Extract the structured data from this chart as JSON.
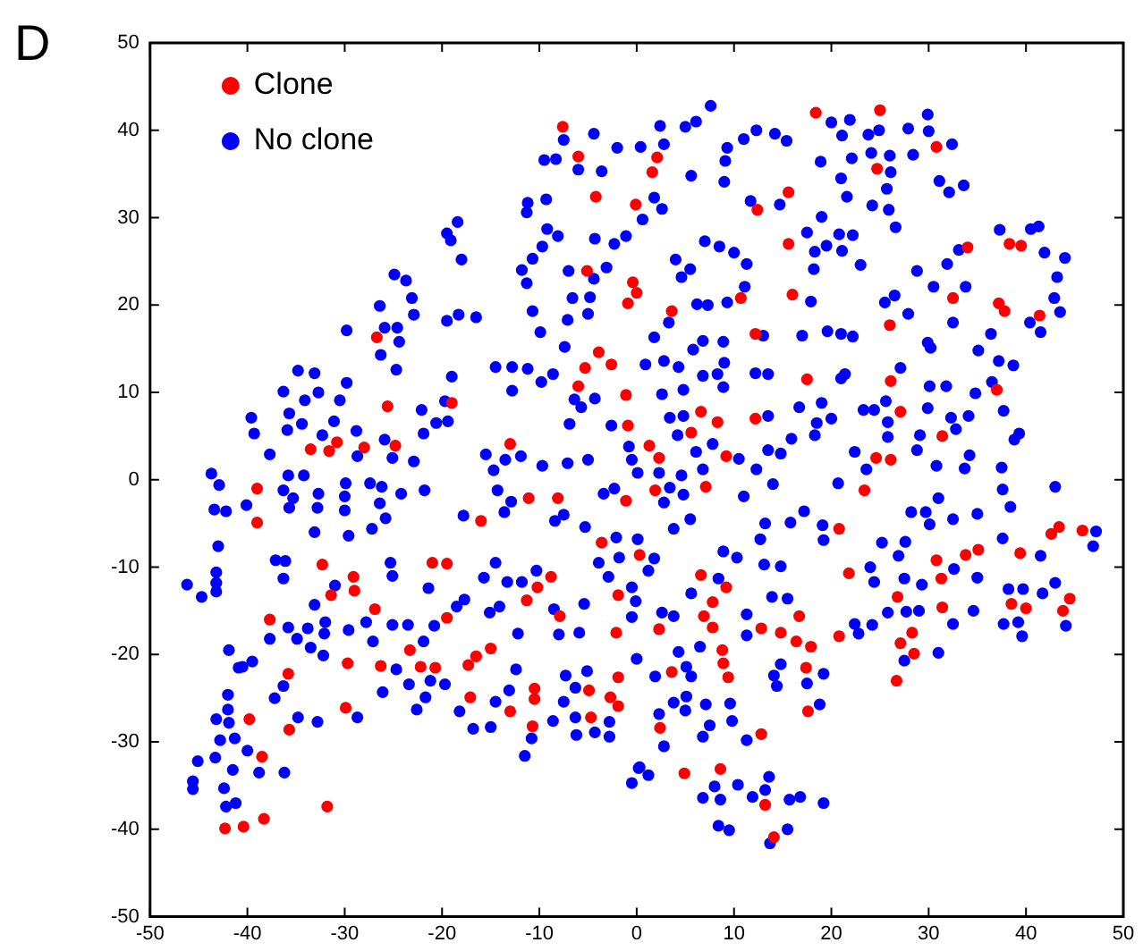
{
  "chart_data": {
    "type": "scatter",
    "annotations": [
      "D"
    ],
    "xlim": [
      -50,
      50
    ],
    "ylim": [
      -50,
      50
    ],
    "xticks": [
      -50,
      -40,
      -30,
      -20,
      -10,
      0,
      10,
      20,
      30,
      40,
      50
    ],
    "yticks": [
      -50,
      -40,
      -30,
      -20,
      -10,
      0,
      10,
      20,
      30,
      40,
      50
    ],
    "grid": false,
    "legend": "top left",
    "marker": "circle",
    "series": [
      {
        "name": "Clone",
        "color": "#ff0000",
        "x": [
          -7.6,
          -6,
          -4.2,
          -0.1,
          -5.1,
          -0.4,
          0,
          -0.9,
          -26.7,
          -3.9,
          -5.3,
          -2.6,
          -6,
          -1.1,
          -0.9,
          -25.6,
          -19,
          -13,
          -33.5,
          -31.6,
          -30.8,
          -28,
          -24.8,
          18.4,
          25,
          30.8,
          24.7,
          2.1,
          1.6,
          15.6,
          12.4,
          15.6,
          34,
          38.3,
          39.5,
          16,
          10.7,
          32.5,
          37.2,
          37.8,
          41.4,
          3.6,
          12.2,
          26,
          17.5,
          26.1,
          37,
          6.6,
          8.3,
          12.2,
          27.1,
          5.6,
          31.4,
          1.3,
          2.3,
          9.2,
          24.6,
          26.1,
          -39,
          -39,
          -32.3,
          -29.1,
          -29,
          -31.4,
          -26.9,
          -21,
          -19.5,
          -37.7,
          -19.5,
          -23.3,
          -29.7,
          -26.3,
          -22.2,
          -20.7,
          -35.8,
          -29.9,
          -35.7,
          -39.8,
          -38.5,
          -31.8,
          -42.3,
          -40.4,
          -38.3,
          -16,
          -11.1,
          -8.1,
          -1.1,
          -3.6,
          0.3,
          -8.8,
          -10.2,
          -11.3,
          -7.9,
          -1.9,
          -2.1,
          -1.9,
          -2.7,
          -1.9,
          -4.9,
          -4.7,
          -15,
          -16.5,
          -17.3,
          -17.1,
          -13,
          -10.5,
          -10.5,
          -10.7,
          1.9,
          7.1,
          23.4,
          20.8,
          6.6,
          9.2,
          7.8,
          6.9,
          7.8,
          2.3,
          8.8,
          8.9,
          9.4,
          3.6,
          12.8,
          14.8,
          16.7,
          16.4,
          17.9,
          17.4,
          17.6,
          20.8,
          21.8,
          2.4,
          12.8,
          4.9,
          8.6,
          13.2,
          14.1,
          26.8,
          28.3,
          27.1,
          28.5,
          26.7,
          30.8,
          31.3,
          31.4,
          33.8,
          35.1,
          39.4,
          38.5,
          40,
          44.5,
          43.8,
          42.6,
          43.4,
          45.8
        ],
        "values": [
          40.4,
          37,
          32.4,
          31.5,
          23.9,
          22.6,
          21.4,
          20.2,
          16.3,
          14.6,
          12.8,
          13.2,
          10.7,
          9.7,
          6.2,
          8.4,
          8.8,
          4.1,
          3.5,
          3.3,
          4.3,
          3.7,
          3.9,
          42,
          42.3,
          38.1,
          35.6,
          36.9,
          35.2,
          32.9,
          30.9,
          27,
          26.6,
          27,
          26.8,
          21.2,
          20.8,
          20.8,
          20.2,
          19.3,
          18.8,
          19.3,
          16.7,
          17.7,
          11.5,
          11.3,
          10.3,
          7.8,
          6.6,
          7,
          7.8,
          5.4,
          5,
          3.9,
          2.5,
          2.7,
          2.5,
          2.3,
          -1,
          -4.9,
          -9.7,
          -11.1,
          -12.7,
          -13.2,
          -14.8,
          -9.5,
          -9.6,
          -16,
          -15.8,
          -19.5,
          -21,
          -21.3,
          -21.4,
          -21.5,
          -22.2,
          -26.1,
          -28.6,
          -27.4,
          -31.7,
          -37.4,
          -39.9,
          -39.7,
          -38.8,
          -4.7,
          -2.1,
          -2.1,
          -2.4,
          -7.2,
          -8.6,
          -11.1,
          -12.3,
          -13.8,
          -15.6,
          -13.2,
          -17.5,
          -22.6,
          -24.9,
          -25.9,
          -24.1,
          -27.2,
          -19.3,
          -20.2,
          -21.2,
          -24.9,
          -26.5,
          -23.9,
          -25.1,
          -28.2,
          -1.2,
          -0.8,
          -1.2,
          -5.6,
          -10.9,
          -12.3,
          -14,
          -15.6,
          -16.9,
          -17.1,
          -19.5,
          -21,
          -22.6,
          -22,
          -17,
          -17.5,
          -15.6,
          -18.5,
          -19.1,
          -21.5,
          -26.5,
          -17.9,
          -10.7,
          -28.4,
          -29.1,
          -33.6,
          -33.1,
          -37.2,
          -40.9,
          -13.4,
          -17.5,
          -18.7,
          -19.9,
          -23,
          -9.2,
          -11.3,
          -14.6,
          -8.6,
          -8,
          -8.4,
          -14.2,
          -14.7,
          -13.6,
          -15,
          -6.2,
          -5.4,
          -5.8
        ]
      },
      {
        "name": "No clone",
        "color": "#0000ff",
        "x": [
          -7.5,
          -4.4,
          -9.5,
          -8.3,
          -6,
          -3.6,
          -2,
          -11.2,
          -11.3,
          -9.3,
          -9.2,
          -8.1,
          -4.3,
          -2.3,
          -1.1,
          -9.7,
          -10.7,
          -11.8,
          -11.3,
          -7,
          -4.4,
          -3.1,
          -6.6,
          -4.8,
          -5,
          -7.1,
          -10.7,
          -9.9,
          -7.4,
          -18.4,
          -19.5,
          -19.1,
          -18,
          -24.9,
          -23.7,
          -23.1,
          -22.9,
          -26.4,
          -25.9,
          -24.6,
          -24.4,
          -29.8,
          -19.5,
          -18.3,
          -16.5,
          -26.3,
          -24.7,
          -34.8,
          -33.1,
          -29.8,
          -36.3,
          -32.7,
          -34.1,
          -30.5,
          -35.7,
          -39.6,
          -39.3,
          -34.4,
          -35.9,
          -32.3,
          -31.1,
          -28.8,
          -37.7,
          -35.8,
          -34.2,
          -43.7,
          -28.7,
          -25.9,
          -25.1,
          -22.9,
          -22.1,
          -21.9,
          -20.6,
          -19.4,
          -19.7,
          -19,
          -14.5,
          -12.8,
          -11.2,
          -12.8,
          -9.8,
          -8.6,
          -6.9,
          -6.4,
          -5.7,
          -4.3,
          -2.6,
          -0.8,
          -0.5,
          -5,
          -7.1,
          -9.7,
          -11.9,
          -13.5,
          -15.5,
          -14.7,
          7.6,
          2.4,
          5,
          6.1,
          0.4,
          2.8,
          9.3,
          9.1,
          11,
          12.3,
          14.2,
          15.4,
          5.6,
          9,
          11.7,
          14.7,
          20,
          21.9,
          21.1,
          23.8,
          24.9,
          27.9,
          29.9,
          30,
          32.4,
          28.4,
          18.9,
          22.1,
          24.1,
          26,
          26.1,
          21,
          21.6,
          25.7,
          24.2,
          25.9,
          26.6,
          31.1,
          32.1,
          33.6,
          19,
          17.5,
          19.5,
          20.8,
          22.2,
          21.1,
          18.3,
          23,
          18.2,
          7,
          8.5,
          10,
          11.3,
          4,
          5.5,
          4.6,
          11.1,
          6.2,
          7.3,
          9.3,
          17.9,
          25.5,
          26.5,
          27.9,
          28.8,
          30.5,
          31.9,
          33.8,
          33.1,
          37.3,
          40.5,
          41.3,
          41.9,
          44,
          43.2,
          42.9,
          43.5,
          40.4,
          41.5,
          32.5,
          29.9,
          30.2,
          35.1,
          36.4,
          37.2,
          38.7,
          36.5,
          34.8,
          37.7,
          39.3,
          38.8,
          34.1,
          32.8,
          32.3,
          29.9,
          30.1,
          31.8,
          29.1,
          28.8,
          30.8,
          33.7,
          34.2,
          37.5,
          19.6,
          21,
          22.2,
          17,
          13,
          27.1,
          25.6,
          25.8,
          25.8,
          24.4,
          23.3,
          19,
          18.5,
          20,
          18.3,
          16.7,
          15.9,
          21.4,
          21,
          13.5,
          12.2,
          13.5,
          14.8,
          13.5,
          22.4,
          23.6,
          0.9,
          2.8,
          4.3,
          5.8,
          6.8,
          8.9,
          9,
          8.3,
          6.8,
          8.9,
          4.8,
          2.6,
          1.8,
          3.3,
          4.8,
          3.4,
          4.2,
          6.1,
          7.8,
          10.5,
          12.3,
          6.8,
          4.6,
          2.3,
          0.1,
          1.8,
          2.6,
          0.6,
          -46.2,
          -44.7,
          -43.2,
          -43.2,
          -43.2,
          -43,
          -43.4,
          -42.2,
          -42.9,
          -40.1,
          -36.3,
          -35.3,
          -35.7,
          -32.7,
          -32.8,
          -33.1,
          -29.9,
          -30,
          -30,
          -29.6,
          -27.4,
          -26.2,
          -26.4,
          -25.8,
          -27.2,
          -24.2,
          -21.8,
          -37.1,
          -36.1,
          -36.3,
          -31,
          -33.1,
          -32,
          -32.1,
          -32.2,
          -33.5,
          -34.9,
          -35.8,
          -37.7,
          -33.8,
          -29.6,
          -27.8,
          -27.1,
          -25.3,
          -25.1,
          -25.1,
          -23.5,
          -21.9,
          -20.8,
          -21.4,
          -18.5,
          -17.7,
          -15.1,
          -14.5,
          -15.7,
          -14.1,
          -13.3,
          -11.8,
          -10.3,
          -12.2,
          -12.4,
          -13.1,
          -14.5,
          -15,
          -16.8,
          -18.2,
          -19.7,
          -21.7,
          -22.6,
          -23.4,
          -21.2,
          -24.7,
          -26.1,
          -28.7,
          -32.8,
          -34.8,
          -36.3,
          -37.2,
          -40.5,
          -39.5,
          -41.9,
          -40.9,
          -42,
          -43.2,
          -42,
          -41.9,
          -42.8,
          -41.3,
          -40,
          -41.5,
          -38.8,
          -43.3,
          -42.4,
          -45.1,
          -45.6,
          -45.6,
          -42.2,
          -41.2,
          -36.2,
          -11.5,
          -10.8,
          -8.6,
          -6.3,
          -6.2,
          -4.3,
          -2.8,
          -2.8,
          -7.5,
          -6.3,
          -5.1,
          -7.3,
          -5.9,
          -8,
          -5.4,
          -8.5,
          -2.9,
          -3.9,
          -1.8,
          -2.1,
          -0.5,
          -0.1,
          -0.5,
          0,
          0.2,
          -0.5,
          -3.4,
          -2.3,
          -5.3,
          -7.5,
          -8.4,
          -12.9,
          -13.6,
          -14.3,
          -17.8,
          3.4,
          4.8,
          2.8,
          11,
          14,
          20.7,
          5.5,
          3.8,
          0.1,
          1.8,
          1.2,
          13.2,
          12.7,
          15.8,
          17.2,
          19.1,
          19.2,
          8.9,
          10.3,
          13.1,
          14.8,
          8.4,
          5.6,
          2.6,
          3.8,
          11.3,
          11.3,
          13.9,
          15.5,
          6.5,
          4.3,
          5.1,
          5.6,
          1.9,
          14.1,
          14.4,
          14.8,
          17.5,
          19.2,
          18.8,
          3.8,
          5.1,
          5,
          7.1,
          9.6,
          9.8,
          7.5,
          6.8,
          11.3,
          2.3,
          2.8,
          0.3,
          1.2,
          8,
          6.8,
          8.6,
          10.4,
          11.9,
          13.2,
          13.6,
          15.7,
          16.8,
          19.2,
          8.4,
          9.5,
          13.7,
          15.5,
          22.4,
          22.8,
          24.2,
          25.8,
          27.7,
          29,
          27.5,
          31,
          32.5,
          34.6,
          37.7,
          39.2,
          39.6,
          44.1,
          38.2,
          39.7,
          41.7,
          43,
          41.5,
          37.6,
          35,
          32.6,
          29.3,
          27.5,
          26.9,
          27.6,
          25.2,
          24,
          24.4,
          28.2,
          29.7,
          30.1,
          31,
          32.5,
          35,
          37.6,
          38.4,
          43,
          47.2,
          46.9
        ],
        "values": [
          38.9,
          39.6,
          36.6,
          36.7,
          35.5,
          35.3,
          38,
          31.7,
          30.6,
          32.1,
          28.7,
          27.9,
          27.6,
          27,
          27.9,
          26.7,
          25.3,
          24,
          22.5,
          23.9,
          23,
          24.3,
          20.8,
          20.9,
          19,
          18.3,
          19.3,
          16.9,
          15.2,
          29.5,
          28.2,
          27.4,
          25.2,
          23.5,
          22.8,
          20.8,
          18.9,
          19.9,
          17.4,
          17.4,
          15.8,
          17.1,
          18.2,
          18.9,
          18.6,
          14.3,
          12.6,
          12.5,
          12.2,
          11.1,
          10.1,
          10,
          9.1,
          9.1,
          7.6,
          7.1,
          5.3,
          6.4,
          5.7,
          5.1,
          6.7,
          5.6,
          2.9,
          0.5,
          0.5,
          0.7,
          2.7,
          4.6,
          2.5,
          2.1,
          8,
          5.3,
          6.5,
          6.7,
          9,
          11.8,
          12.9,
          12.9,
          12.7,
          10.2,
          11.2,
          12.1,
          6.4,
          9.2,
          8.3,
          9.3,
          6.2,
          3.8,
          2.3,
          2.3,
          1.9,
          1.6,
          2.7,
          2.3,
          2.9,
          1.1,
          42.8,
          40.5,
          40.4,
          41,
          38.1,
          38.4,
          38,
          36.5,
          39,
          40,
          39.6,
          38.8,
          34.8,
          34.1,
          31.9,
          31.5,
          40.9,
          41.2,
          39.4,
          39.5,
          40,
          40.2,
          41.8,
          39.9,
          38.4,
          37.2,
          36.4,
          36.8,
          37.4,
          37.1,
          35.2,
          34.5,
          32.4,
          33.3,
          31.4,
          30.9,
          28.9,
          34.2,
          32.9,
          33.7,
          30.1,
          28.3,
          26.8,
          28.1,
          28,
          26.2,
          26.1,
          24.6,
          24.1,
          27.3,
          26.7,
          26,
          24.7,
          25.2,
          24.1,
          23.2,
          22.1,
          20.1,
          20,
          20.3,
          20.4,
          20.3,
          21.1,
          19,
          23.9,
          22.1,
          24.7,
          22.1,
          26.3,
          28.6,
          28.7,
          29,
          26,
          25.4,
          23.2,
          20.8,
          19.2,
          18,
          16.9,
          18,
          15.7,
          15.1,
          14.8,
          16.7,
          13.6,
          13.1,
          11.2,
          9.9,
          7.9,
          5.3,
          4.6,
          7.3,
          5.8,
          7.1,
          8.2,
          10.7,
          10.7,
          5.1,
          3.4,
          1.6,
          1.3,
          2.8,
          1.4,
          17,
          16.7,
          16.4,
          16.5,
          16.5,
          12.8,
          9,
          6.6,
          4.9,
          8,
          8,
          8.8,
          6.5,
          7,
          5.1,
          8.3,
          4.7,
          12.1,
          11.6,
          12.1,
          12.2,
          7.3,
          3,
          3.4,
          3.2,
          1.2,
          13.2,
          13.6,
          12.9,
          14.9,
          15.9,
          15.8,
          13.4,
          12.1,
          11.9,
          10.6,
          10.3,
          9.8,
          16.3,
          18,
          7.3,
          7.1,
          5.1,
          3.2,
          4.1,
          2.4,
          1.2,
          1.2,
          0.5,
          0.8,
          0.8,
          32.3,
          31,
          29.8,
          -12,
          -13.4,
          -12.8,
          -11.8,
          -10.6,
          -7.6,
          -3.4,
          -3.6,
          -0.6,
          -2.9,
          -1.2,
          -2.1,
          -3.2,
          -1.6,
          -3.2,
          -6,
          -0.4,
          -1.9,
          -3.5,
          -6.4,
          -0.4,
          -0.8,
          -2.7,
          -4.4,
          -5.6,
          -1.6,
          -1.2,
          -9.2,
          -9.3,
          -11.3,
          -12.1,
          -14.3,
          -16.3,
          -17.6,
          -20.1,
          -19.2,
          -18.2,
          -16.9,
          -18.2,
          -17,
          -17.2,
          -16.3,
          -18.5,
          -9.5,
          -11,
          -16.6,
          -16.6,
          -18.5,
          -16.7,
          -12.4,
          -14.5,
          -13.7,
          -15.2,
          -9.5,
          -11.2,
          -14.5,
          -11.7,
          -11.7,
          -10.4,
          -17.6,
          -21.7,
          -24.1,
          -25.4,
          -28.3,
          -28.5,
          -26.5,
          -23.4,
          -24.9,
          -26.3,
          -23.4,
          -23,
          -21.7,
          -24.3,
          -27.2,
          -27.7,
          -27.2,
          -23.6,
          -25,
          -21.4,
          -20.8,
          -19.5,
          -21.5,
          -24.6,
          -27.4,
          -26.3,
          -27.8,
          -29.8,
          -29.6,
          -31,
          -33.2,
          -33.5,
          -31.8,
          -35.3,
          -32.2,
          -34.5,
          -35.4,
          -37.4,
          -37,
          -33.5,
          -31.6,
          -29.6,
          -27.6,
          -27.2,
          -29.2,
          -28.9,
          -27.7,
          -29.4,
          -25.4,
          -23.8,
          -21.9,
          -22.4,
          -17.5,
          -17.7,
          -14.2,
          -14.8,
          -11.1,
          -9.5,
          -8.9,
          -6.6,
          -12.3,
          -13.9,
          -15.7,
          -20.5,
          -33,
          -34.7,
          -1.6,
          -1,
          -5.4,
          -4,
          -4.7,
          -2.5,
          -3.7,
          -1.2,
          -4.1,
          -0.9,
          -1.7,
          -2.6,
          -1.9,
          -0.5,
          -0.4,
          -4.5,
          -5.6,
          -6.8,
          -9,
          -10.4,
          -5,
          -6.8,
          -4.9,
          -3.6,
          -5.2,
          -6.9,
          -8.2,
          -8.9,
          -9.7,
          -9.9,
          -11.3,
          -13,
          -15.2,
          -15.6,
          -15.4,
          -17.8,
          -13.4,
          -13.6,
          -19.1,
          -19.7,
          -21.4,
          -22.5,
          -22.5,
          -22.4,
          -23.6,
          -21.1,
          -23.3,
          -22.2,
          -25.7,
          -25.5,
          -24.8,
          -26.4,
          -25.7,
          -25.6,
          -27.6,
          -28.1,
          -29.4,
          -29.8,
          -26.8,
          -30.5,
          -32.9,
          -33.8,
          -35.1,
          -36.4,
          -36.6,
          -34.9,
          -36.3,
          -35.5,
          -34,
          -36.6,
          -36.3,
          -37,
          -39.6,
          -40.1,
          -41.6,
          -40,
          -16.5,
          -17.6,
          -16.6,
          -15.2,
          -15.1,
          -15,
          -20.7,
          -19.8,
          -16.5,
          -15,
          -16.5,
          -16.3,
          -17.9,
          -16.7,
          -12.5,
          -12.5,
          -13,
          -11.8,
          -8.7,
          -6.7,
          -11.2,
          -10.2,
          -12,
          -11.3,
          -8.7,
          -7.1,
          -7.2,
          -10,
          -11.7,
          -3.7,
          -3.7,
          -5.1,
          -2.1,
          -4.5,
          -3.9,
          -1.1,
          -3.1,
          -0.8,
          -5.9,
          -7.6
        ]
      }
    ]
  }
}
